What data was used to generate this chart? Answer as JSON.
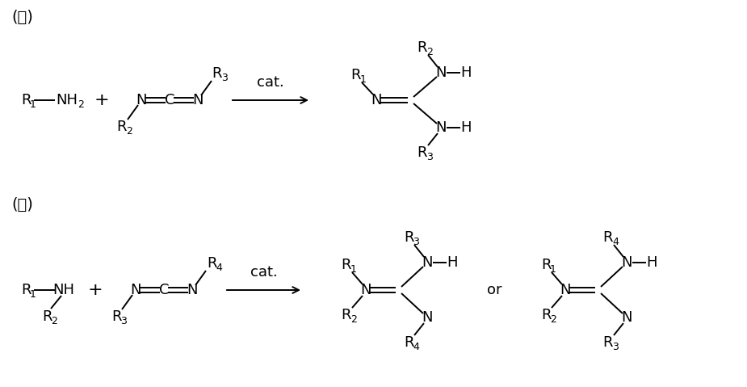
{
  "bg_color": "#ffffff",
  "line_color": "#000000",
  "font_size": 13,
  "sub_font_size": 9,
  "figsize": [
    9.25,
    4.79
  ],
  "dpi": 100,
  "label_ga": "(가)",
  "label_na": "(나)",
  "cat_label": "cat.",
  "or_label": "or"
}
